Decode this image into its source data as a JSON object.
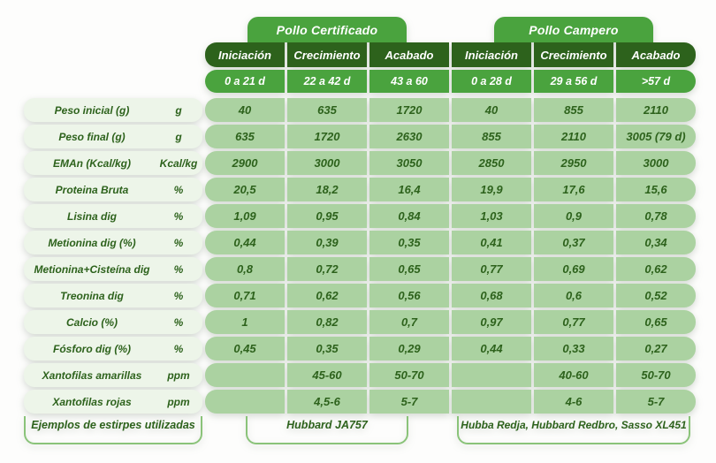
{
  "chart_data": {
    "type": "table",
    "column_groups": [
      {
        "title": "Pollo Certificado",
        "phases": [
          "Iniciación",
          "Crecimiento",
          "Acabado"
        ],
        "ages": [
          "0 a 21 d",
          "22 a 42 d",
          "43 a 60"
        ]
      },
      {
        "title": "Pollo Campero",
        "phases": [
          "Iniciación",
          "Crecimiento",
          "Acabado"
        ],
        "ages": [
          "0 a 28 d",
          "29 a 56 d",
          ">57 d"
        ]
      }
    ],
    "rows": [
      {
        "label": "Peso inicial (g)",
        "unit": "g",
        "values": [
          "40",
          "635",
          "1720",
          "40",
          "855",
          "2110"
        ]
      },
      {
        "label": "Peso final (g)",
        "unit": "g",
        "values": [
          "635",
          "1720",
          "2630",
          "855",
          "2110",
          "3005 (79 d)"
        ]
      },
      {
        "label": "EMAn (Kcal/kg)",
        "unit": "Kcal/kg",
        "values": [
          "2900",
          "3000",
          "3050",
          "2850",
          "2950",
          "3000"
        ]
      },
      {
        "label": "Proteina Bruta",
        "unit": "%",
        "values": [
          "20,5",
          "18,2",
          "16,4",
          "19,9",
          "17,6",
          "15,6"
        ]
      },
      {
        "label": "Lisina dig",
        "unit": "%",
        "values": [
          "1,09",
          "0,95",
          "0,84",
          "1,03",
          "0,9",
          "0,78"
        ]
      },
      {
        "label": "Metionina dig (%)",
        "unit": "%",
        "values": [
          "0,44",
          "0,39",
          "0,35",
          "0,41",
          "0,37",
          "0,34"
        ]
      },
      {
        "label": "Metionina+Cisteína dig",
        "unit": "%",
        "values": [
          "0,8",
          "0,72",
          "0,65",
          "0,77",
          "0,69",
          "0,62"
        ]
      },
      {
        "label": "Treonina dig",
        "unit": "%",
        "values": [
          "0,71",
          "0,62",
          "0,56",
          "0,68",
          "0,6",
          "0,52"
        ]
      },
      {
        "label": "Calcio (%)",
        "unit": "%",
        "values": [
          "1",
          "0,82",
          "0,7",
          "0,97",
          "0,77",
          "0,65"
        ]
      },
      {
        "label": "Fósforo dig (%)",
        "unit": "%",
        "values": [
          "0,45",
          "0,35",
          "0,29",
          "0,44",
          "0,33",
          "0,27"
        ]
      },
      {
        "label": "Xantofilas amarillas",
        "unit": "ppm",
        "values": [
          "",
          "45-60",
          "50-70",
          "",
          "40-60",
          "50-70"
        ]
      },
      {
        "label": "Xantofilas rojas",
        "unit": "ppm",
        "values": [
          "",
          "4,5-6",
          "5-7",
          "",
          "4-6",
          "5-7"
        ]
      }
    ],
    "footer": {
      "label": "Ejemplos de estirpes utilizadas",
      "certificado_strains": "Hubbard JA757",
      "campero_strains": "Hubba Redja, Hubbard Redbro, Sasso XL451"
    },
    "colors": {
      "dark_green": "#2d621c",
      "mid_green": "#4aa33e",
      "cell_green": "#abd2a1",
      "label_pill_green": "#edf5e9",
      "text_green": "#2d621c",
      "outline_green": "#8ac379"
    }
  }
}
